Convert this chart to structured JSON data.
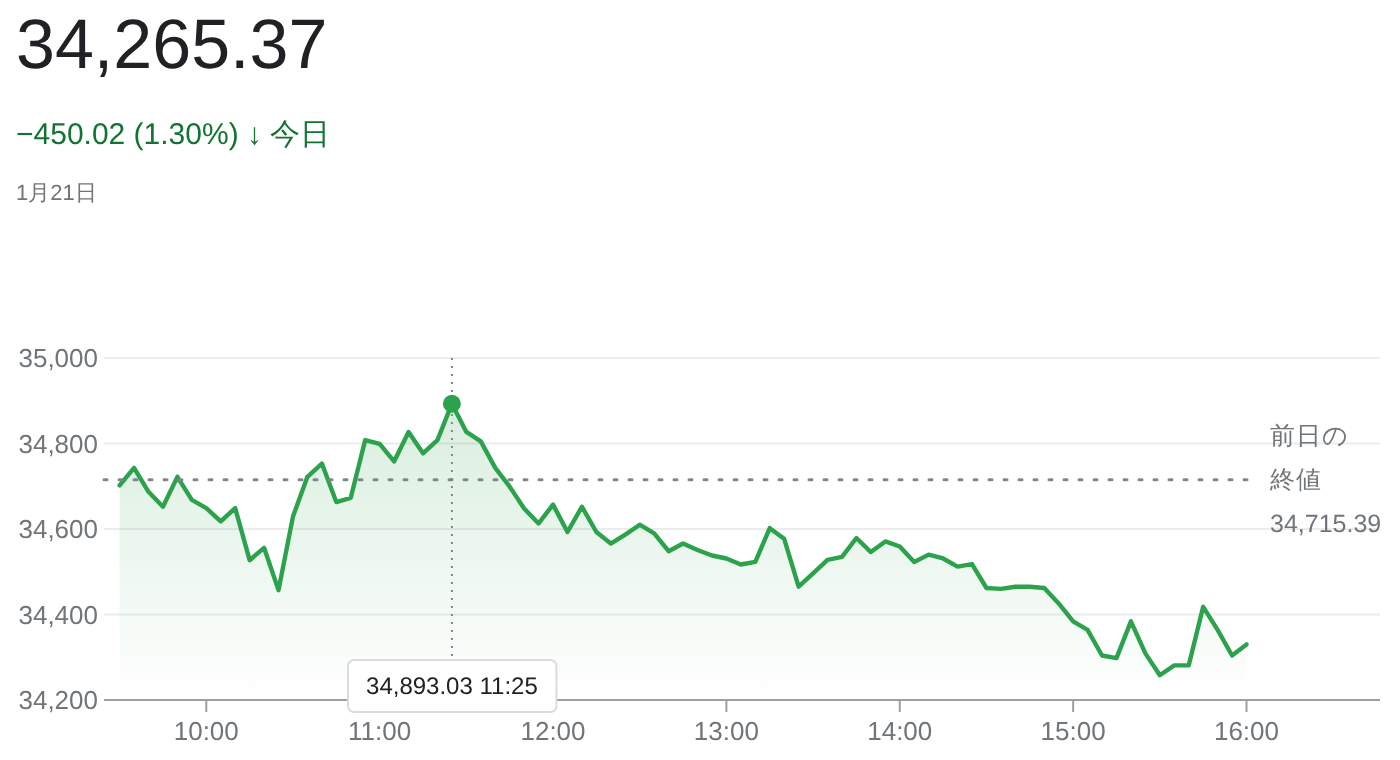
{
  "chart_data": {
    "type": "area",
    "title": "34,265.37",
    "subtitle": "−450.02 (1.30%) ↓ 今日",
    "annotations": [
      "1月21日",
      "34,893.03 11:25"
    ],
    "x": [
      9.5,
      9.5833,
      9.6667,
      9.75,
      9.8333,
      9.9167,
      10,
      10.0833,
      10.1667,
      10.25,
      10.3333,
      10.4167,
      10.5,
      10.5833,
      10.6667,
      10.75,
      10.8333,
      10.9167,
      11,
      11.0833,
      11.1667,
      11.25,
      11.3333,
      11.4167,
      11.5,
      11.5833,
      11.6667,
      11.75,
      11.8333,
      11.9167,
      12,
      12.0833,
      12.1667,
      12.25,
      12.3333,
      12.4167,
      12.5,
      12.5833,
      12.6667,
      12.75,
      12.8333,
      12.9167,
      13,
      13.0833,
      13.1667,
      13.25,
      13.3333,
      13.4167,
      13.5,
      13.5833,
      13.6667,
      13.75,
      13.8333,
      13.9167,
      14,
      14.0833,
      14.1667,
      14.25,
      14.3333,
      14.4167,
      14.5,
      14.5833,
      14.6667,
      14.75,
      14.8333,
      14.9167,
      15,
      15.0833,
      15.1667,
      15.25,
      15.3333,
      15.4167,
      15.5,
      15.5833,
      15.6667,
      15.75,
      15.8333,
      15.9167,
      16
    ],
    "values": [
      34702,
      34743,
      34687,
      34652,
      34722,
      34668,
      34649,
      34618,
      34649,
      34527,
      34556,
      34457,
      34629,
      34722,
      34753,
      34663,
      34673,
      34808,
      34799,
      34758,
      34827,
      34777,
      34808,
      34893,
      34827,
      34805,
      34743,
      34699,
      34648,
      34613,
      34657,
      34593,
      34652,
      34593,
      34566,
      34587,
      34610,
      34590,
      34548,
      34566,
      34551,
      34538,
      34531,
      34517,
      34523,
      34602,
      34577,
      34465,
      34496,
      34528,
      34535,
      34579,
      34546,
      34571,
      34559,
      34523,
      34540,
      34531,
      34512,
      34518,
      34462,
      34460,
      34465,
      34465,
      34462,
      34426,
      34384,
      34364,
      34304,
      34298,
      34384,
      34309,
      34258,
      34281,
      34281,
      34418,
      34364,
      34304,
      34330
    ],
    "color": "#2ca24c",
    "xlim": [
      9.41,
      16.77
    ],
    "xticks": [
      {
        "value": 10,
        "label": "10:00"
      },
      {
        "value": 11,
        "label": "11:00"
      },
      {
        "value": 12,
        "label": "12:00"
      },
      {
        "value": 13,
        "label": "13:00"
      },
      {
        "value": 14,
        "label": "14:00"
      },
      {
        "value": 15,
        "label": "15:00"
      },
      {
        "value": 16,
        "label": "16:00"
      }
    ],
    "ylim": [
      34200,
      35000
    ],
    "yticks": [
      {
        "value": 34200,
        "label": "34,200"
      },
      {
        "value": 34400,
        "label": "34,400"
      },
      {
        "value": 34600,
        "label": "34,600"
      },
      {
        "value": 34800,
        "label": "34,800"
      },
      {
        "value": 35000,
        "label": "35,000"
      }
    ],
    "grid": "y",
    "ref_lines": [
      {
        "axis": "y",
        "value": 34715.39,
        "label": "前日の終値\n34,715.39",
        "line_style": "dotted"
      },
      {
        "axis": "x",
        "value": 11.4167,
        "line_style": "dotted"
      }
    ]
  }
}
